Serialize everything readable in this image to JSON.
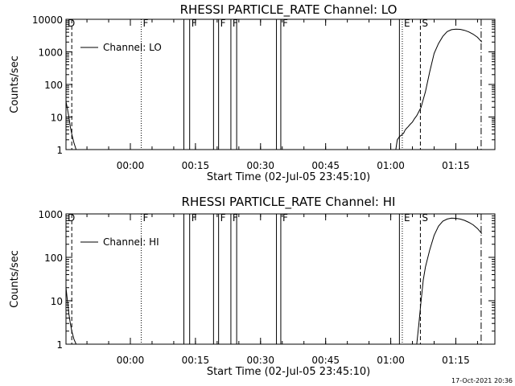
{
  "footer": {
    "timestamp": "17-Oct-2021 20:36"
  },
  "chart_data": [
    {
      "type": "line",
      "title": "RHESSI PARTICLE_RATE Channel: LO",
      "xlabel": "Start Time (02-Jul-05 23:45:10)",
      "ylabel": "Counts/sec",
      "yscale": "log",
      "ylim": [
        1,
        10000
      ],
      "xlim": [
        "23:45:10",
        "01:24:00"
      ],
      "yticks": [
        "1",
        "10",
        "100",
        "1000",
        "10000"
      ],
      "xticks": [
        "00:00",
        "00:15",
        "00:30",
        "00:45",
        "01:00",
        "01:15"
      ],
      "legend": {
        "entry": "Channel: LO",
        "position": "top-left"
      },
      "series": [
        {
          "name": "Channel: LO",
          "x": [
            "23:45:10",
            "23:45:30",
            "23:45:50",
            "23:46:10",
            "23:46:30",
            "23:47:00",
            "23:47:30",
            "01:01:10",
            "01:01:30",
            "01:02:00",
            "01:02:30",
            "01:03:00",
            "01:03:20",
            "01:03:40",
            "01:04:00",
            "01:04:30",
            "01:05:00",
            "01:05:30",
            "01:06:00",
            "01:07:00",
            "01:08:00",
            "01:09:00",
            "01:10:00",
            "01:11:00",
            "01:12:00",
            "01:13:00",
            "01:14:00",
            "01:15:00",
            "01:16:00",
            "01:17:00",
            "01:18:00",
            "01:19:00",
            "01:20:00",
            "01:21:00"
          ],
          "y": [
            30,
            18,
            10,
            5,
            3,
            1.6,
            1,
            1,
            2,
            2.5,
            2.8,
            3.2,
            4,
            4.5,
            5,
            6,
            7,
            9,
            11,
            20,
            60,
            250,
            900,
            1800,
            3000,
            4200,
            4800,
            5000,
            4900,
            4600,
            4100,
            3500,
            2800,
            2000
          ]
        }
      ],
      "markers": [
        {
          "label": "D",
          "time": "23:45:10",
          "style": "dotted"
        },
        {
          "label": "",
          "time": "23:46:30",
          "style": "dashed"
        },
        {
          "label": "F",
          "time": "00:02:30",
          "style": "dotted"
        },
        {
          "label": "",
          "time": "00:12:20",
          "style": "solid"
        },
        {
          "label": "F",
          "time": "00:13:40",
          "style": "solid"
        },
        {
          "label": "",
          "time": "00:19:10",
          "style": "solid"
        },
        {
          "label": "F",
          "time": "00:20:20",
          "style": "solid"
        },
        {
          "label": "F",
          "time": "00:23:10",
          "style": "solid"
        },
        {
          "label": "",
          "time": "00:24:30",
          "style": "solid"
        },
        {
          "label": "",
          "time": "00:33:40",
          "style": "solid"
        },
        {
          "label": "F",
          "time": "00:34:40",
          "style": "solid"
        },
        {
          "label": "",
          "time": "01:02:00",
          "style": "solid"
        },
        {
          "label": "E",
          "time": "01:02:40",
          "style": "dotted"
        },
        {
          "label": "S",
          "time": "01:06:50",
          "style": "dashed"
        },
        {
          "label": "",
          "time": "01:20:50",
          "style": "dashdot"
        }
      ]
    },
    {
      "type": "line",
      "title": "RHESSI PARTICLE_RATE Channel: HI",
      "xlabel": "Start Time (02-Jul-05 23:45:10)",
      "ylabel": "Counts/sec",
      "yscale": "log",
      "ylim": [
        1,
        1000
      ],
      "xlim": [
        "23:45:10",
        "01:24:00"
      ],
      "yticks": [
        "1",
        "10",
        "100",
        "1000"
      ],
      "xticks": [
        "00:00",
        "00:15",
        "00:30",
        "00:45",
        "01:00",
        "01:15"
      ],
      "legend": {
        "entry": "Channel: HI",
        "position": "top-left"
      },
      "series": [
        {
          "name": "Channel: HI",
          "x": [
            "23:45:10",
            "23:45:30",
            "23:45:50",
            "23:46:10",
            "23:46:30",
            "23:47:00",
            "23:47:30",
            "01:06:00",
            "01:06:30",
            "01:07:00",
            "01:07:30",
            "01:08:00",
            "01:09:00",
            "01:10:00",
            "01:11:00",
            "01:12:00",
            "01:13:00",
            "01:14:00",
            "01:15:00",
            "01:16:00",
            "01:17:00",
            "01:18:00",
            "01:19:00",
            "01:20:00",
            "01:21:00"
          ],
          "y": [
            20,
            10,
            5,
            3,
            2,
            1.3,
            1,
            1,
            3,
            10,
            30,
            60,
            150,
            320,
            520,
            680,
            760,
            800,
            790,
            760,
            710,
            640,
            560,
            460,
            350
          ]
        }
      ],
      "markers": [
        {
          "label": "D",
          "time": "23:45:10",
          "style": "dotted"
        },
        {
          "label": "",
          "time": "23:46:30",
          "style": "dashed"
        },
        {
          "label": "F",
          "time": "00:02:30",
          "style": "dotted"
        },
        {
          "label": "",
          "time": "00:12:20",
          "style": "solid"
        },
        {
          "label": "F",
          "time": "00:13:40",
          "style": "solid"
        },
        {
          "label": "",
          "time": "00:19:10",
          "style": "solid"
        },
        {
          "label": "F",
          "time": "00:20:20",
          "style": "solid"
        },
        {
          "label": "F",
          "time": "00:23:10",
          "style": "solid"
        },
        {
          "label": "",
          "time": "00:24:30",
          "style": "solid"
        },
        {
          "label": "",
          "time": "00:33:40",
          "style": "solid"
        },
        {
          "label": "F",
          "time": "00:34:40",
          "style": "solid"
        },
        {
          "label": "",
          "time": "01:02:00",
          "style": "solid"
        },
        {
          "label": "E",
          "time": "01:02:40",
          "style": "dotted"
        },
        {
          "label": "S",
          "time": "01:06:50",
          "style": "dashed"
        },
        {
          "label": "",
          "time": "01:20:50",
          "style": "dashdot"
        }
      ]
    }
  ]
}
